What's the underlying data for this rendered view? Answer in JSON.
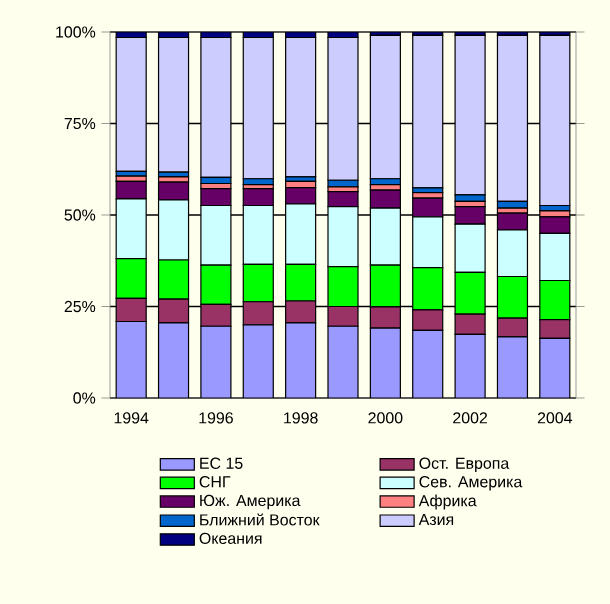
{
  "chart_data": {
    "type": "bar",
    "stacked": true,
    "categories": [
      "1994",
      null,
      "1996",
      null,
      "1998",
      null,
      "2000",
      null,
      "2002",
      null,
      "2004"
    ],
    "series": [
      {
        "name": "ЕС 15",
        "color": "#9999ff",
        "values": [
          20.9,
          20.5,
          19.6,
          20.0,
          20.5,
          19.6,
          19.1,
          18.5,
          17.4,
          16.7,
          16.3
        ]
      },
      {
        "name": "Ост. Европа",
        "color": "#993366",
        "values": [
          6.3,
          6.5,
          6.0,
          6.3,
          6.0,
          5.4,
          5.8,
          5.6,
          5.5,
          5.1,
          5.1
        ]
      },
      {
        "name": "СНГ",
        "color": "#00ff00",
        "values": [
          10.9,
          10.7,
          10.7,
          10.2,
          10.0,
          10.9,
          11.4,
          11.5,
          11.4,
          11.4,
          10.7
        ]
      },
      {
        "name": "Сев. Америка",
        "color": "#ccffff",
        "values": [
          16.3,
          16.4,
          16.3,
          16.1,
          16.5,
          16.4,
          15.6,
          13.9,
          13.2,
          12.7,
          12.9
        ]
      },
      {
        "name": "Юж. Америка",
        "color": "#660066",
        "values": [
          4.8,
          4.9,
          4.6,
          4.6,
          4.5,
          4.1,
          4.9,
          5.1,
          4.8,
          4.6,
          4.5
        ]
      },
      {
        "name": "Африка",
        "color": "#ff8080",
        "values": [
          1.4,
          1.4,
          1.4,
          1.1,
          1.7,
          1.3,
          1.5,
          1.5,
          1.4,
          1.4,
          1.6
        ]
      },
      {
        "name": "Ближний Восток",
        "color": "#0066cc",
        "values": [
          1.3,
          1.3,
          1.7,
          1.6,
          1.2,
          1.8,
          1.6,
          1.3,
          1.8,
          1.8,
          1.5
        ]
      },
      {
        "name": "Азия",
        "color": "#ccccff",
        "values": [
          36.6,
          36.8,
          38.2,
          38.6,
          38.1,
          39.0,
          39.2,
          41.7,
          43.6,
          45.4,
          46.5
        ]
      },
      {
        "name": "Океания",
        "color": "#000080",
        "values": [
          1.5,
          1.5,
          1.5,
          1.5,
          1.5,
          1.5,
          0.9,
          0.9,
          0.9,
          0.9,
          0.9
        ]
      }
    ],
    "ylim": [
      0,
      100
    ],
    "yticks": [
      {
        "value": 0,
        "label": "0%"
      },
      {
        "value": 25,
        "label": "25%"
      },
      {
        "value": 50,
        "label": "50%"
      },
      {
        "value": 75,
        "label": "75%"
      },
      {
        "value": 100,
        "label": "100%"
      }
    ],
    "grid": "y",
    "legend": "bottom"
  }
}
